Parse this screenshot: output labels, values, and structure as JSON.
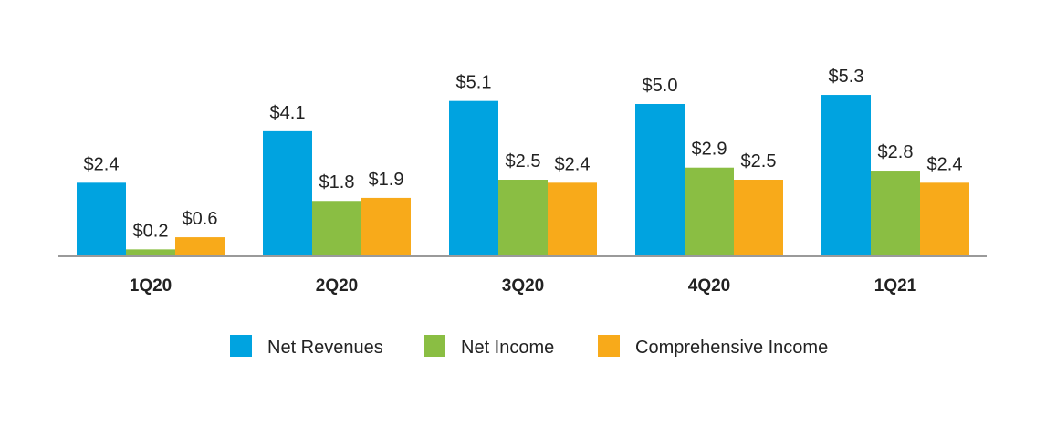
{
  "chart_data": {
    "type": "bar",
    "categories": [
      "1Q20",
      "2Q20",
      "3Q20",
      "4Q20",
      "1Q21"
    ],
    "series": [
      {
        "name": "Net Revenues",
        "color": "#00A3E0",
        "values": [
          2.4,
          4.1,
          5.1,
          5.0,
          5.3
        ],
        "labels": [
          "$2.4",
          "$4.1",
          "$5.1",
          "$5.0",
          "$5.3"
        ]
      },
      {
        "name": "Net Income",
        "color": "#8ABE43",
        "values": [
          0.2,
          1.8,
          2.5,
          2.9,
          2.8
        ],
        "labels": [
          "$0.2",
          "$1.8",
          "$2.5",
          "$2.9",
          "$2.8"
        ]
      },
      {
        "name": "Comprehensive Income",
        "color": "#F8AA1A",
        "values": [
          0.6,
          1.9,
          2.4,
          2.5,
          2.4
        ],
        "labels": [
          "$0.6",
          "$1.9",
          "$2.4",
          "$2.5",
          "$2.4"
        ]
      }
    ],
    "ylim": [
      0,
      6
    ],
    "grid": false,
    "legend_position": "bottom-center"
  }
}
